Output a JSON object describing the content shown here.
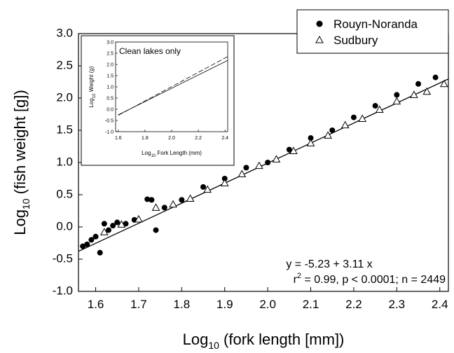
{
  "chart_data": [
    {
      "type": "scatter",
      "title": "",
      "xlabel_prefix": "Log",
      "xlabel_sub": "10",
      "xlabel_rest": " (fork length [mm])",
      "ylabel_prefix": "Log",
      "ylabel_sub": "10",
      "ylabel_rest": " (fish weight [g])",
      "xlim": [
        1.56,
        2.42
      ],
      "ylim": [
        -1.0,
        3.0
      ],
      "xticks": [
        "1.6",
        "1.7",
        "1.8",
        "1.9",
        "2.0",
        "2.1",
        "2.2",
        "2.3",
        "2.4"
      ],
      "xtick_values": [
        1.6,
        1.7,
        1.8,
        1.9,
        2.0,
        2.1,
        2.2,
        2.3,
        2.4
      ],
      "yticks": [
        "-1.0",
        "-0.5",
        "0.0",
        "0.5",
        "1.0",
        "1.5",
        "2.0",
        "2.5",
        "3.0"
      ],
      "ytick_values": [
        -1.0,
        -0.5,
        0.0,
        0.5,
        1.0,
        1.5,
        2.0,
        2.5,
        3.0
      ],
      "grid": false,
      "legend": {
        "placement": "top-right",
        "entries": [
          {
            "label": "Rouyn-Noranda",
            "marker": "filled-circle"
          },
          {
            "label": "Sudbury",
            "marker": "open-triangle"
          }
        ]
      },
      "series": [
        {
          "name": "Rouyn-Noranda",
          "marker": "filled-circle",
          "color": "#000000",
          "x": [
            1.57,
            1.58,
            1.59,
            1.6,
            1.61,
            1.62,
            1.63,
            1.64,
            1.65,
            1.67,
            1.69,
            1.72,
            1.73,
            1.74,
            1.76,
            1.8,
            1.85,
            1.9,
            1.95,
            2.0,
            2.05,
            2.1,
            2.15,
            2.2,
            2.25,
            2.3,
            2.35,
            2.39
          ],
          "y": [
            -0.3,
            -0.27,
            -0.2,
            -0.15,
            -0.4,
            0.05,
            -0.05,
            0.02,
            0.07,
            0.05,
            0.11,
            0.43,
            0.42,
            -0.05,
            0.3,
            0.42,
            0.62,
            0.75,
            0.92,
            1.0,
            1.2,
            1.38,
            1.5,
            1.7,
            1.88,
            2.05,
            2.22,
            2.32
          ]
        },
        {
          "name": "Sudbury",
          "marker": "open-triangle",
          "color": "#000000",
          "x": [
            1.62,
            1.66,
            1.7,
            1.74,
            1.78,
            1.82,
            1.86,
            1.9,
            1.94,
            1.98,
            2.02,
            2.06,
            2.1,
            2.14,
            2.18,
            2.22,
            2.26,
            2.3,
            2.34,
            2.37,
            2.41
          ],
          "y": [
            -0.08,
            0.04,
            0.12,
            0.3,
            0.35,
            0.44,
            0.58,
            0.68,
            0.82,
            0.95,
            1.05,
            1.18,
            1.3,
            1.42,
            1.58,
            1.68,
            1.82,
            1.95,
            2.05,
            2.1,
            2.22
          ]
        }
      ],
      "regression": {
        "intercept": -5.23,
        "slope": 3.11,
        "equation_text": "y = -5.23 + 3.11 x",
        "stats_prefix": "r",
        "stats_sup": "2",
        "stats_rest": " = 0.99, p < 0.0001; n = 2449"
      }
    },
    {
      "type": "line",
      "title": "Clean lakes only",
      "xlabel_prefix": "Log",
      "xlabel_sub": "10",
      "xlabel_rest": " Fork Length (mm)",
      "ylabel_prefix": "Log",
      "ylabel_sub": "10",
      "ylabel_rest": " Weight (g)",
      "xlim": [
        1.58,
        2.42
      ],
      "ylim": [
        -1.0,
        3.0
      ],
      "xticks": [
        "1.6",
        "1.8",
        "2.0",
        "2.2",
        "2.4"
      ],
      "xtick_values": [
        1.6,
        1.8,
        2.0,
        2.2,
        2.4
      ],
      "yticks": [
        "-1.0",
        "-0.5",
        "0.0",
        "0.5",
        "1.0",
        "1.5",
        "2.0",
        "2.5",
        "3.0"
      ],
      "ytick_values": [
        -1.0,
        -0.5,
        0.0,
        0.5,
        1.0,
        1.5,
        2.0,
        2.5,
        3.0
      ],
      "series": [
        {
          "style": "solid",
          "x": [
            1.6,
            2.42
          ],
          "y": [
            -0.25,
            2.18
          ]
        },
        {
          "style": "dashed",
          "x": [
            1.6,
            2.42
          ],
          "y": [
            -0.27,
            2.35
          ]
        }
      ]
    }
  ]
}
